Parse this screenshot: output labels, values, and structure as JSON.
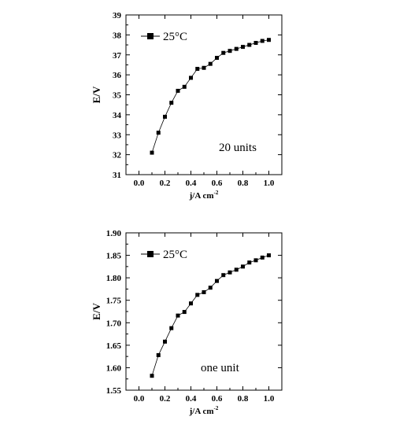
{
  "chart_data": [
    {
      "type": "line",
      "xlabel": "j/A cm",
      "xlabel_sup": "-2",
      "ylabel": "E/V",
      "xlim": [
        -0.1,
        1.1
      ],
      "ylim": [
        31,
        39
      ],
      "xticks": [
        "0.0",
        "0.2",
        "0.4",
        "0.6",
        "0.8",
        "1.0"
      ],
      "yticks": [
        "31",
        "32",
        "33",
        "34",
        "35",
        "36",
        "37",
        "38",
        "39"
      ],
      "series": [
        {
          "name": "25°C",
          "x": [
            0.1,
            0.15,
            0.2,
            0.25,
            0.3,
            0.35,
            0.4,
            0.45,
            0.5,
            0.55,
            0.6,
            0.65,
            0.7,
            0.75,
            0.8,
            0.85,
            0.9,
            0.95,
            1.0
          ],
          "y": [
            32.1,
            33.1,
            33.9,
            34.6,
            35.2,
            35.4,
            35.85,
            36.3,
            36.35,
            36.55,
            36.85,
            37.1,
            37.2,
            37.3,
            37.4,
            37.5,
            37.6,
            37.7,
            37.75
          ]
        }
      ],
      "legend_position": "top-left",
      "annotation": "20 units"
    },
    {
      "type": "line",
      "xlabel": "j/A cm",
      "xlabel_sup": "-2",
      "ylabel": "E/V",
      "xlim": [
        -0.1,
        1.1
      ],
      "ylim": [
        1.55,
        1.9
      ],
      "xticks": [
        "0.0",
        "0.2",
        "0.4",
        "0.6",
        "0.8",
        "1.0"
      ],
      "yticks": [
        "1.55",
        "1.60",
        "1.65",
        "1.70",
        "1.75",
        "1.80",
        "1.85",
        "1.90"
      ],
      "series": [
        {
          "name": "25°C",
          "x": [
            0.1,
            0.15,
            0.2,
            0.25,
            0.3,
            0.35,
            0.4,
            0.45,
            0.5,
            0.55,
            0.6,
            0.65,
            0.7,
            0.75,
            0.8,
            0.85,
            0.9,
            0.95,
            1.0
          ],
          "y": [
            1.582,
            1.628,
            1.658,
            1.688,
            1.716,
            1.724,
            1.743,
            1.762,
            1.768,
            1.778,
            1.793,
            1.806,
            1.812,
            1.818,
            1.825,
            1.834,
            1.839,
            1.845,
            1.85
          ]
        }
      ],
      "legend_position": "top-left",
      "annotation": "one unit"
    }
  ]
}
